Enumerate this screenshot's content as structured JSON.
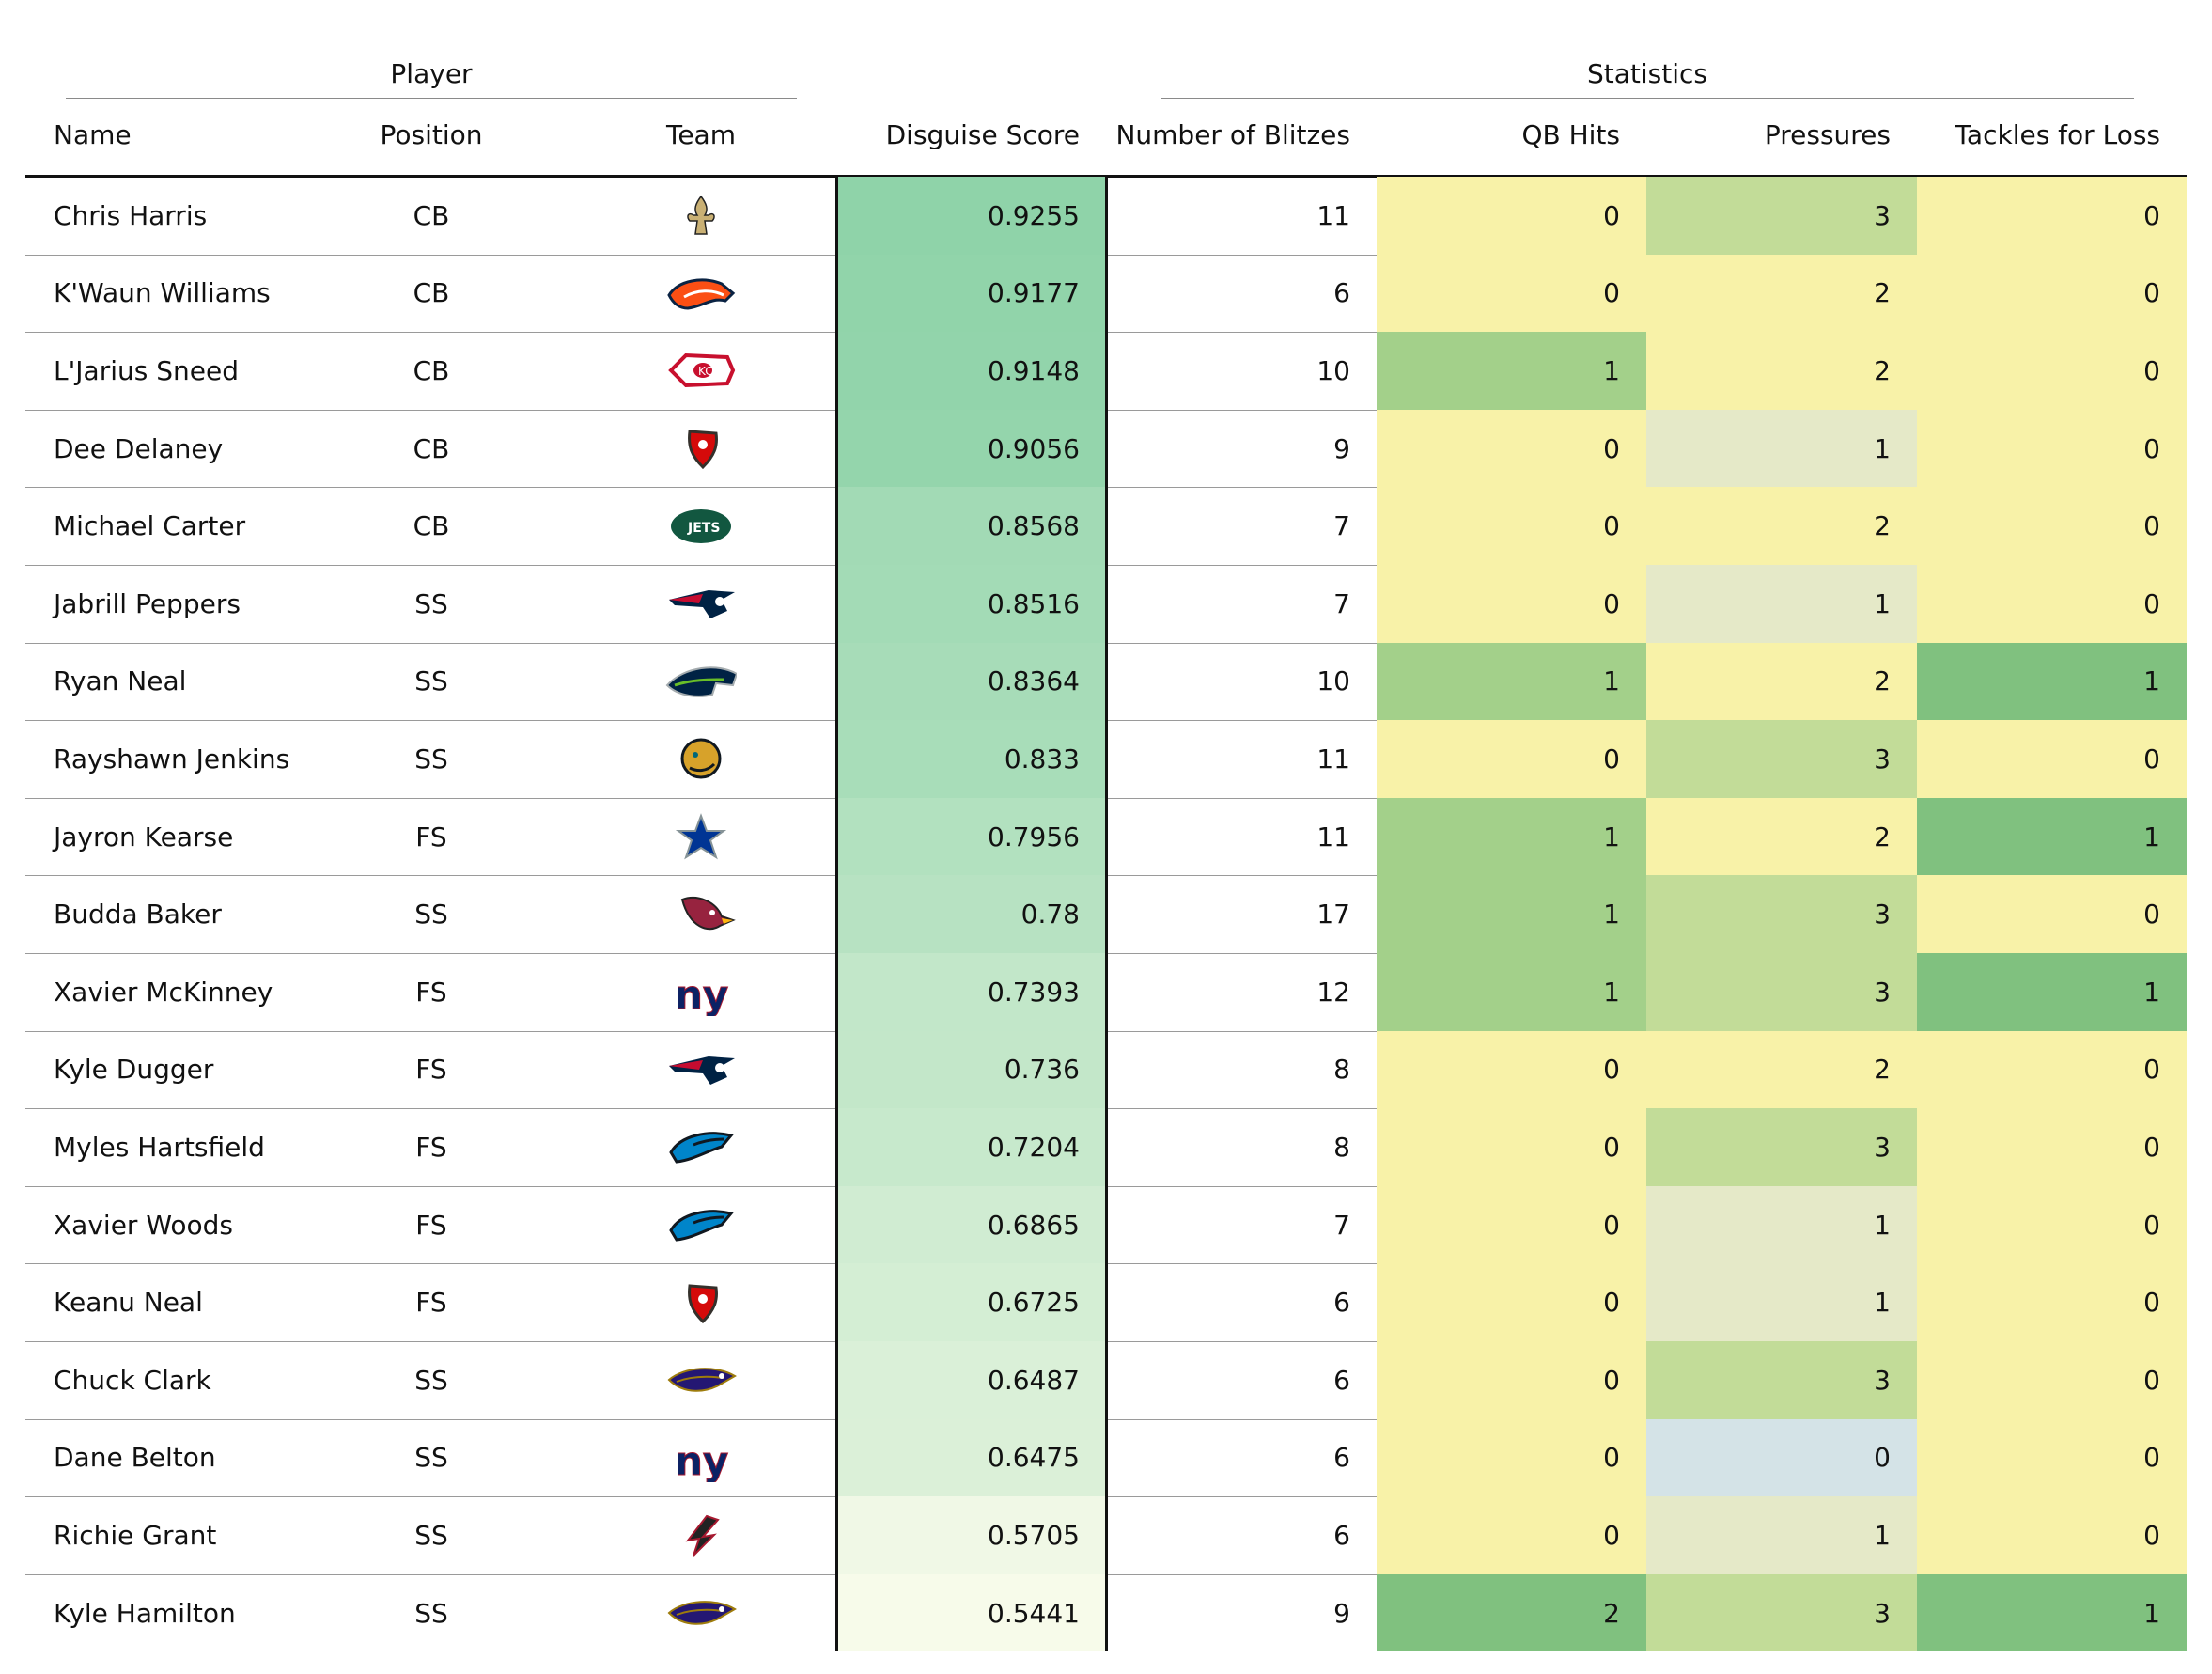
{
  "chart_data": {
    "type": "table",
    "column_groups": [
      {
        "label": "Player"
      },
      {
        "label": "Statistics"
      }
    ],
    "columns": {
      "name": "Name",
      "position": "Position",
      "team": "Team",
      "disguise": "Disguise Score",
      "blitzes": "Number of Blitzes",
      "qb_hits": "QB Hits",
      "pressures": "Pressures",
      "tfl": "Tackles for Loss"
    },
    "rows": [
      {
        "name": "Chris Harris",
        "position": "CB",
        "team": "saints-logo-icon",
        "disguise": "0.9255",
        "blitzes": "11",
        "qb_hits": "0",
        "pressures": "3",
        "tfl": "0"
      },
      {
        "name": "K'Waun Williams",
        "position": "CB",
        "team": "broncos-logo-icon",
        "disguise": "0.9177",
        "blitzes": "6",
        "qb_hits": "0",
        "pressures": "2",
        "tfl": "0"
      },
      {
        "name": "L'Jarius Sneed",
        "position": "CB",
        "team": "chiefs-logo-icon",
        "disguise": "0.9148",
        "blitzes": "10",
        "qb_hits": "1",
        "pressures": "2",
        "tfl": "0"
      },
      {
        "name": "Dee Delaney",
        "position": "CB",
        "team": "buccaneers-logo-icon",
        "disguise": "0.9056",
        "blitzes": "9",
        "qb_hits": "0",
        "pressures": "1",
        "tfl": "0"
      },
      {
        "name": "Michael Carter",
        "position": "CB",
        "team": "jets-logo-icon",
        "disguise": "0.8568",
        "blitzes": "7",
        "qb_hits": "0",
        "pressures": "2",
        "tfl": "0"
      },
      {
        "name": "Jabrill Peppers",
        "position": "SS",
        "team": "patriots-logo-icon",
        "disguise": "0.8516",
        "blitzes": "7",
        "qb_hits": "0",
        "pressures": "1",
        "tfl": "0"
      },
      {
        "name": "Ryan Neal",
        "position": "SS",
        "team": "seahawks-logo-icon",
        "disguise": "0.8364",
        "blitzes": "10",
        "qb_hits": "1",
        "pressures": "2",
        "tfl": "1"
      },
      {
        "name": "Rayshawn Jenkins",
        "position": "SS",
        "team": "jaguars-logo-icon",
        "disguise": "0.833",
        "blitzes": "11",
        "qb_hits": "0",
        "pressures": "3",
        "tfl": "0"
      },
      {
        "name": "Jayron Kearse",
        "position": "FS",
        "team": "cowboys-logo-icon",
        "disguise": "0.7956",
        "blitzes": "11",
        "qb_hits": "1",
        "pressures": "2",
        "tfl": "1"
      },
      {
        "name": "Budda Baker",
        "position": "SS",
        "team": "cardinals-logo-icon",
        "disguise": "0.78",
        "blitzes": "17",
        "qb_hits": "1",
        "pressures": "3",
        "tfl": "0"
      },
      {
        "name": "Xavier McKinney",
        "position": "FS",
        "team": "giants-logo-icon",
        "disguise": "0.7393",
        "blitzes": "12",
        "qb_hits": "1",
        "pressures": "3",
        "tfl": "1"
      },
      {
        "name": "Kyle Dugger",
        "position": "FS",
        "team": "patriots-logo-icon",
        "disguise": "0.736",
        "blitzes": "8",
        "qb_hits": "0",
        "pressures": "2",
        "tfl": "0"
      },
      {
        "name": "Myles Hartsfield",
        "position": "FS",
        "team": "panthers-logo-icon",
        "disguise": "0.7204",
        "blitzes": "8",
        "qb_hits": "0",
        "pressures": "3",
        "tfl": "0"
      },
      {
        "name": "Xavier Woods",
        "position": "FS",
        "team": "panthers-logo-icon",
        "disguise": "0.6865",
        "blitzes": "7",
        "qb_hits": "0",
        "pressures": "1",
        "tfl": "0"
      },
      {
        "name": "Keanu Neal",
        "position": "FS",
        "team": "buccaneers-logo-icon",
        "disguise": "0.6725",
        "blitzes": "6",
        "qb_hits": "0",
        "pressures": "1",
        "tfl": "0"
      },
      {
        "name": "Chuck Clark",
        "position": "SS",
        "team": "ravens-logo-icon",
        "disguise": "0.6487",
        "blitzes": "6",
        "qb_hits": "0",
        "pressures": "3",
        "tfl": "0"
      },
      {
        "name": "Dane Belton",
        "position": "SS",
        "team": "giants-logo-icon",
        "disguise": "0.6475",
        "blitzes": "6",
        "qb_hits": "0",
        "pressures": "0",
        "tfl": "0"
      },
      {
        "name": "Richie Grant",
        "position": "SS",
        "team": "falcons-logo-icon",
        "disguise": "0.5705",
        "blitzes": "6",
        "qb_hits": "0",
        "pressures": "1",
        "tfl": "0"
      },
      {
        "name": "Kyle Hamilton",
        "position": "SS",
        "team": "ravens-logo-icon",
        "disguise": "0.5441",
        "blitzes": "9",
        "qb_hits": "2",
        "pressures": "3",
        "tfl": "1"
      }
    ],
    "colors": {
      "disguise_scale": [
        "#f7fbea",
        "#8fd3a9"
      ],
      "qb_hits": {
        "0": "#f8f2a8",
        "1": "#a3d08a",
        "2": "#80c17f"
      },
      "pressures": {
        "0": "#d4e3e7",
        "1": "#e5e9c8",
        "2": "#f8f2a8",
        "3": "#c2dc98"
      },
      "tfl": {
        "0": "#f8f2a8",
        "1": "#80c17f"
      }
    }
  }
}
